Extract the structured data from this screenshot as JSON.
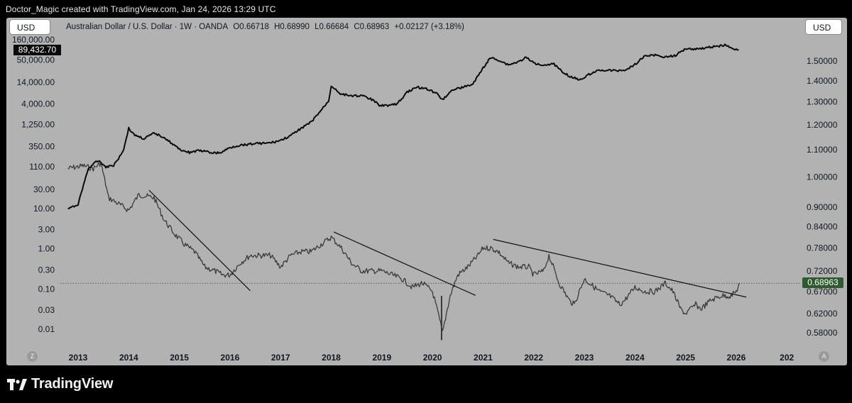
{
  "header": {
    "caption": "Doctor_Magic created with TradingView.com, Jan 24, 2026 13:29 UTC"
  },
  "toolbar": {
    "currency_left": "USD",
    "currency_right": "USD"
  },
  "symbol_info": {
    "name": "Australian Dollar / U.S. Dollar · 1W · OANDA",
    "open": "O0.66718",
    "high": "H0.68990",
    "low": "L0.66684",
    "close": "C0.68963",
    "change": "+0.02127 (+3.18%)"
  },
  "badges": {
    "left_value": "89,432.70",
    "right_value": "0.68963"
  },
  "corner_buttons": {
    "log_scale": "Z",
    "auto_scale": "A"
  },
  "footer": {
    "logo_text": "TradingView"
  },
  "colors": {
    "background": "#b2b2b2",
    "frame": "#000000",
    "line": "#0a0a0a",
    "candle": "#3a3a3a",
    "badge_green": "#2e5a2e"
  },
  "chart_data": {
    "type": "line",
    "title": "",
    "grid": false,
    "xlabel": "",
    "ylabel": "",
    "x_ticks": [
      "2013",
      "2014",
      "2015",
      "2016",
      "2017",
      "2018",
      "2019",
      "2020",
      "2021",
      "2022",
      "2023",
      "2024",
      "2025",
      "2026",
      "202"
    ],
    "left_axis": {
      "scale": "log",
      "ticks": [
        "160,000.00",
        "50,000.00",
        "14,000.00",
        "4,000.00",
        "1,250.00",
        "350.00",
        "110.00",
        "30.00",
        "10.00",
        "3.00",
        "1.00",
        "0.30",
        "0.10",
        "0.03",
        "0.01"
      ]
    },
    "right_axis": {
      "scale": "log",
      "ticks": [
        "1.50000",
        "1.40000",
        "1.30000",
        "1.20000",
        "1.10000",
        "1.00000",
        "0.90000",
        "0.84000",
        "0.78000",
        "0.72000",
        "0.67000",
        "0.62000",
        "0.58000"
      ]
    },
    "series": [
      {
        "type": "line",
        "axis": "left",
        "x": [
          2012.8,
          2012.9,
          2013.0,
          2013.2,
          2013.4,
          2013.55,
          2013.7,
          2013.8,
          2013.9,
          2014.0,
          2014.1,
          2014.3,
          2014.5,
          2014.7,
          2014.85,
          2015.0,
          2015.2,
          2015.4,
          2015.6,
          2015.8,
          2016.0,
          2016.2,
          2016.5,
          2016.8,
          2017.0,
          2017.2,
          2017.4,
          2017.6,
          2017.8,
          2017.95,
          2018.0,
          2018.2,
          2018.4,
          2018.6,
          2018.8,
          2018.95,
          2019.1,
          2019.3,
          2019.5,
          2019.7,
          2019.9,
          2020.1,
          2020.2,
          2020.4,
          2020.6,
          2020.8,
          2021.0,
          2021.15,
          2021.3,
          2021.5,
          2021.7,
          2021.85,
          2022.0,
          2022.2,
          2022.4,
          2022.5,
          2022.7,
          2022.9,
          2023.0,
          2023.2,
          2023.4,
          2023.6,
          2023.8,
          2024.0,
          2024.2,
          2024.4,
          2024.6,
          2024.8,
          2025.0,
          2025.2,
          2025.4,
          2025.6,
          2025.8,
          2025.95,
          2026.05
        ],
        "y": [
          10,
          11,
          13,
          100,
          160,
          110,
          120,
          180,
          300,
          1000,
          700,
          550,
          750,
          600,
          420,
          300,
          250,
          280,
          250,
          240,
          330,
          380,
          420,
          430,
          500,
          650,
          1000,
          1400,
          2800,
          4800,
          11500,
          7000,
          6500,
          6500,
          5200,
          3800,
          3700,
          4000,
          8000,
          10500,
          9500,
          7200,
          5200,
          9200,
          10500,
          12500,
          32000,
          57000,
          50000,
          38000,
          45000,
          58000,
          42000,
          38000,
          40000,
          30000,
          20000,
          16000,
          19000,
          26000,
          28000,
          27000,
          28000,
          39000,
          64000,
          66000,
          59000,
          65000,
          96000,
          94000,
          100000,
          110000,
          118000,
          90000,
          89432.7
        ]
      },
      {
        "type": "candle-proxy",
        "axis": "right",
        "name": "AUD/USD",
        "x": [
          2012.8,
          2013.1,
          2013.3,
          2013.45,
          2013.6,
          2013.8,
          2014.0,
          2014.2,
          2014.5,
          2014.7,
          2014.9,
          2015.1,
          2015.3,
          2015.5,
          2015.7,
          2015.85,
          2016.0,
          2016.2,
          2016.4,
          2016.6,
          2016.8,
          2017.0,
          2017.2,
          2017.4,
          2017.6,
          2017.8,
          2018.0,
          2018.2,
          2018.4,
          2018.6,
          2018.8,
          2019.0,
          2019.2,
          2019.4,
          2019.6,
          2019.8,
          2020.0,
          2020.2,
          2020.35,
          2020.5,
          2020.7,
          2020.9,
          2021.0,
          2021.15,
          2021.3,
          2021.5,
          2021.7,
          2021.9,
          2022.0,
          2022.2,
          2022.3,
          2022.5,
          2022.7,
          2022.8,
          2023.0,
          2023.1,
          2023.3,
          2023.5,
          2023.7,
          2023.8,
          2024.0,
          2024.2,
          2024.4,
          2024.6,
          2024.75,
          2024.9,
          2025.0,
          2025.2,
          2025.3,
          2025.5,
          2025.7,
          2025.9,
          2026.0,
          2026.07
        ],
        "y": [
          1.03,
          1.04,
          1.03,
          1.05,
          0.93,
          0.91,
          0.89,
          0.94,
          0.93,
          0.86,
          0.82,
          0.79,
          0.77,
          0.73,
          0.72,
          0.71,
          0.71,
          0.74,
          0.76,
          0.76,
          0.76,
          0.73,
          0.76,
          0.77,
          0.77,
          0.79,
          0.81,
          0.78,
          0.74,
          0.72,
          0.72,
          0.72,
          0.71,
          0.7,
          0.68,
          0.69,
          0.67,
          0.58,
          0.66,
          0.71,
          0.73,
          0.76,
          0.78,
          0.78,
          0.77,
          0.74,
          0.73,
          0.73,
          0.71,
          0.72,
          0.76,
          0.69,
          0.65,
          0.64,
          0.7,
          0.69,
          0.67,
          0.66,
          0.64,
          0.65,
          0.68,
          0.67,
          0.67,
          0.69,
          0.67,
          0.63,
          0.62,
          0.64,
          0.63,
          0.65,
          0.66,
          0.66,
          0.67,
          0.68963
        ]
      }
    ],
    "trendlines": [
      {
        "x": [
          2014.4,
          2016.4
        ],
        "y": [
          0.955,
          0.672
        ]
      },
      {
        "x": [
          2018.05,
          2020.85
        ],
        "y": [
          0.825,
          0.661
        ]
      },
      {
        "x": [
          2021.2,
          2026.2
        ],
        "y": [
          0.804,
          0.657
        ]
      }
    ],
    "current_price_line": 0.68963
  }
}
